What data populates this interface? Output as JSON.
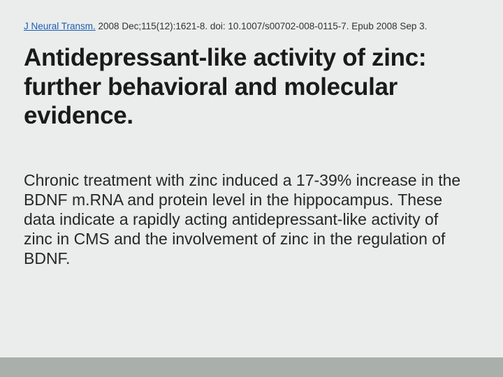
{
  "slide": {
    "background_color": "#ebecec",
    "footer_bar_color": "#a9b0ab",
    "citation": {
      "journal_link": "J Neural Transm.",
      "journal_link_color": "#1a5fb4",
      "rest": " 2008 Dec;115(12):1621-8. doi: 10.1007/s00702-008-0115-7. Epub 2008 Sep 3.",
      "fontsize": 13.5
    },
    "title": {
      "text": "Antidepressant-like activity of zinc: further behavioral and molecular evidence.",
      "fontsize": 35,
      "fontweight": "bold",
      "color": "#1a1a1a"
    },
    "body": {
      "text": "Chronic treatment with zinc induced a 17-39% increase in the BDNF m.RNA and protein level in the hippocampus. These data indicate a rapidly acting antidepressant-like activity of zinc in CMS and the involvement of zinc in the regulation of BDNF.",
      "fontsize": 23,
      "color": "#272727"
    }
  }
}
